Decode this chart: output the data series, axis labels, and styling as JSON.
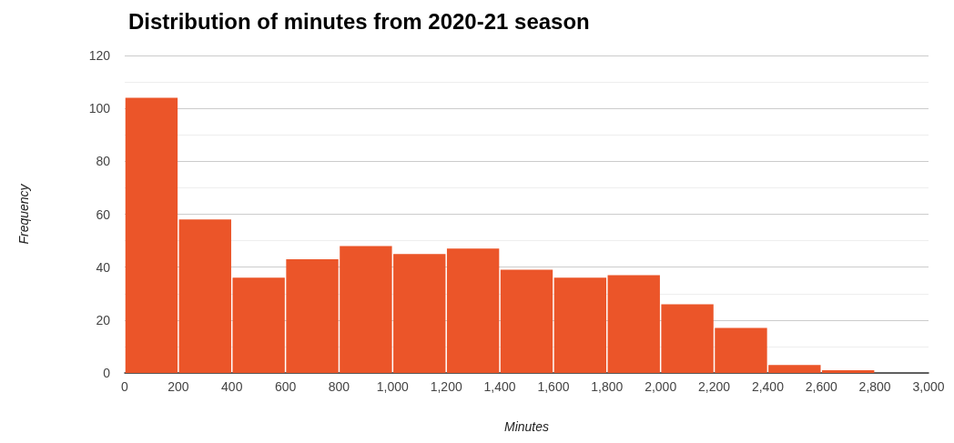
{
  "chart_data": {
    "type": "histogram",
    "title": "Distribution of minutes from 2020-21 season",
    "xlabel": "Minutes",
    "ylabel": "Frequency",
    "bins": [
      0,
      200,
      400,
      600,
      800,
      1000,
      1200,
      1400,
      1600,
      1800,
      2000,
      2200,
      2400,
      2600,
      2800,
      3000
    ],
    "values": [
      104,
      58,
      36,
      43,
      48,
      45,
      47,
      39,
      36,
      37,
      26,
      17,
      3,
      1,
      0
    ],
    "color": "#eb5529",
    "xlim": [
      0,
      3000
    ],
    "xticks": [
      0,
      200,
      400,
      600,
      800,
      {
        "value": 1000,
        "label": "1,000"
      },
      {
        "value": 1200,
        "label": "1,200"
      },
      {
        "value": 1400,
        "label": "1,400"
      },
      {
        "value": 1600,
        "label": "1,600"
      },
      {
        "value": 1800,
        "label": "1,800"
      },
      {
        "value": 2000,
        "label": "2,000"
      },
      {
        "value": 2200,
        "label": "2,200"
      },
      {
        "value": 2400,
        "label": "2,400"
      },
      {
        "value": 2600,
        "label": "2,600"
      },
      {
        "value": 2800,
        "label": "2,800"
      },
      {
        "value": 3000,
        "label": "3,000"
      }
    ],
    "ylim": [
      0,
      120
    ],
    "yticks": [
      0,
      20,
      40,
      60,
      80,
      100,
      120
    ],
    "grid": "y"
  }
}
